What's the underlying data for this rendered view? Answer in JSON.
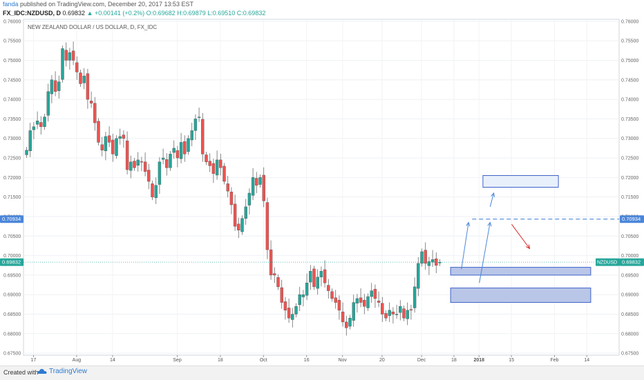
{
  "header": {
    "author": "fanda",
    "published": " published on TradingView.com, December 20, 2017 13:53 EST",
    "symbol": "FX_IDC:NZDUSD, D",
    "last": "0.69832",
    "change": "+0.00141 (+0.2%)",
    "open": "O:0.69682",
    "high": "H:0.69879",
    "low": "L:0.69510",
    "close": "C:0.69832"
  },
  "footer": {
    "created": "Created with",
    "brand": "TradingView"
  },
  "chart_data": {
    "type": "candlestick",
    "title": "NEW ZEALAND DOLLAR / US DOLLAR, D, FX_IDC",
    "ylim": [
      0.6745,
      0.7605
    ],
    "y_ticks": [
      "0.67500",
      "0.68000",
      "0.68500",
      "0.69000",
      "0.69500",
      "0.70000",
      "0.70500",
      "0.71000",
      "0.71500",
      "0.72000",
      "0.72500",
      "0.73000",
      "0.73500",
      "0.74000",
      "0.74500",
      "0.75000",
      "0.75500",
      "0.76000"
    ],
    "x_tick_labels": [
      "17",
      "Aug",
      "14",
      "Sep",
      "18",
      "Oct",
      "16",
      "Nov",
      "20",
      "Dec",
      "18",
      "2018",
      "15",
      "Feb",
      "14"
    ],
    "x_tick_index": [
      0,
      12,
      22,
      40,
      52,
      64,
      76,
      86,
      97,
      108,
      117,
      124,
      133,
      145,
      154
    ],
    "closes": [
      0.727,
      0.732,
      0.733,
      0.7345,
      0.733,
      0.7355,
      0.742,
      0.745,
      0.742,
      0.7445,
      0.753,
      0.75,
      0.752,
      0.75,
      0.747,
      0.744,
      0.746,
      0.74,
      0.739,
      0.734,
      0.729,
      0.727,
      0.7305,
      0.729,
      0.726,
      0.73,
      0.7305,
      0.73,
      0.722,
      0.724,
      0.7225,
      0.7245,
      0.724,
      0.7215,
      0.719,
      0.715,
      0.718,
      0.724,
      0.725,
      0.7225,
      0.726,
      0.7275,
      0.725,
      0.729,
      0.726,
      0.73,
      0.732,
      0.735,
      0.7355,
      0.726,
      0.724,
      0.723,
      0.721,
      0.7245,
      0.7225,
      0.719,
      0.7165,
      0.713,
      0.7075,
      0.7065,
      0.7095,
      0.7125,
      0.716,
      0.72,
      0.718,
      0.72,
      0.714,
      0.7015,
      0.695,
      0.695,
      0.692,
      0.688,
      0.686,
      0.684,
      0.685,
      0.687,
      0.69,
      0.69,
      0.693,
      0.696,
      0.692,
      0.6945,
      0.696,
      0.693,
      0.691,
      0.689,
      0.688,
      0.686,
      0.683,
      0.6815,
      0.684,
      0.688,
      0.689,
      0.688,
      0.687,
      0.6895,
      0.691,
      0.689,
      0.688,
      0.685,
      0.684,
      0.686,
      0.685,
      0.685,
      0.687,
      0.684,
      0.686,
      0.686,
      0.692,
      0.698,
      0.701,
      0.698,
      0.6985,
      0.699,
      0.6975,
      0.6983
    ],
    "horizontal_level": "0.70934",
    "price_label": "NZDUSD",
    "price_value": "0.69832",
    "level_color": "#4a86d9",
    "up_color": "#26a69a",
    "down_color": "#ef5350",
    "zones": [
      {
        "name": "upper-target-box",
        "x_index": [
          127,
          148
        ],
        "y": [
          0.7175,
          0.7205
        ],
        "fill": "#e8f0fb",
        "stroke": "#3e62c8"
      },
      {
        "name": "near-support-box",
        "x_index": [
          118,
          157
        ],
        "y": [
          0.695,
          0.697
        ],
        "fill": "#b9c6e8",
        "stroke": "#3e62c8"
      },
      {
        "name": "lower-support-box",
        "x_index": [
          118,
          157
        ],
        "y": [
          0.688,
          0.6917
        ],
        "fill": "#b9c6e8",
        "stroke": "#3e62c8"
      }
    ],
    "arrows": [
      {
        "name": "blue-arrow-left",
        "color": "#4a86d9",
        "from": [
          121,
          0.6965
        ],
        "to": [
          123,
          0.7085
        ]
      },
      {
        "name": "blue-arrow-middle",
        "color": "#4a86d9",
        "from": [
          126,
          0.693
        ],
        "to": [
          129,
          0.7085
        ]
      },
      {
        "name": "blue-arrow-upper",
        "color": "#4a86d9",
        "from": [
          129,
          0.7125
        ],
        "to": [
          130,
          0.716
        ]
      },
      {
        "name": "red-arrow-down",
        "color": "#d62828",
        "from": [
          135,
          0.708
        ],
        "to": [
          140,
          0.7018
        ]
      }
    ]
  }
}
